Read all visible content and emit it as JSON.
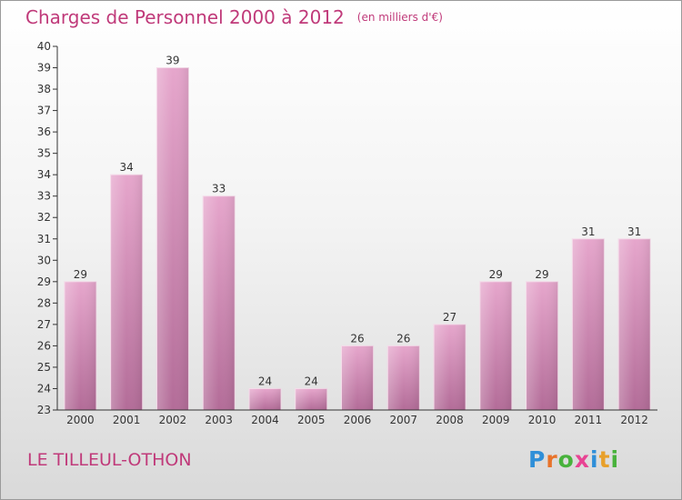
{
  "header": {
    "title": "Charges de Personnel 2000 à 2012",
    "unit": "(en milliers d'€)"
  },
  "footer": {
    "town": "LE TILLEUL-OTHON",
    "logo_letters": [
      {
        "ch": "P",
        "color": "#2f8fd8"
      },
      {
        "ch": "r",
        "color": "#e8732a"
      },
      {
        "ch": "o",
        "color": "#48b23c"
      },
      {
        "ch": "x",
        "color": "#e84393"
      },
      {
        "ch": "i",
        "color": "#2f8fd8"
      },
      {
        "ch": "t",
        "color": "#e8a02a"
      },
      {
        "ch": "i",
        "color": "#48b23c"
      }
    ]
  },
  "chart_data": {
    "type": "bar",
    "title": "Charges de Personnel 2000 à 2012",
    "categories": [
      "2000",
      "2001",
      "2002",
      "2003",
      "2004",
      "2005",
      "2006",
      "2007",
      "2008",
      "2009",
      "2010",
      "2011",
      "2012"
    ],
    "values": [
      29,
      34,
      39,
      33,
      24,
      24,
      26,
      26,
      27,
      29,
      29,
      31,
      31
    ],
    "ylim": [
      23,
      40
    ],
    "yticks": [
      23,
      24,
      25,
      26,
      27,
      28,
      29,
      30,
      31,
      32,
      33,
      34,
      35,
      36,
      37,
      38,
      39,
      40
    ],
    "grid": false,
    "data_labels": true,
    "bar_color": "#d98cbb"
  }
}
